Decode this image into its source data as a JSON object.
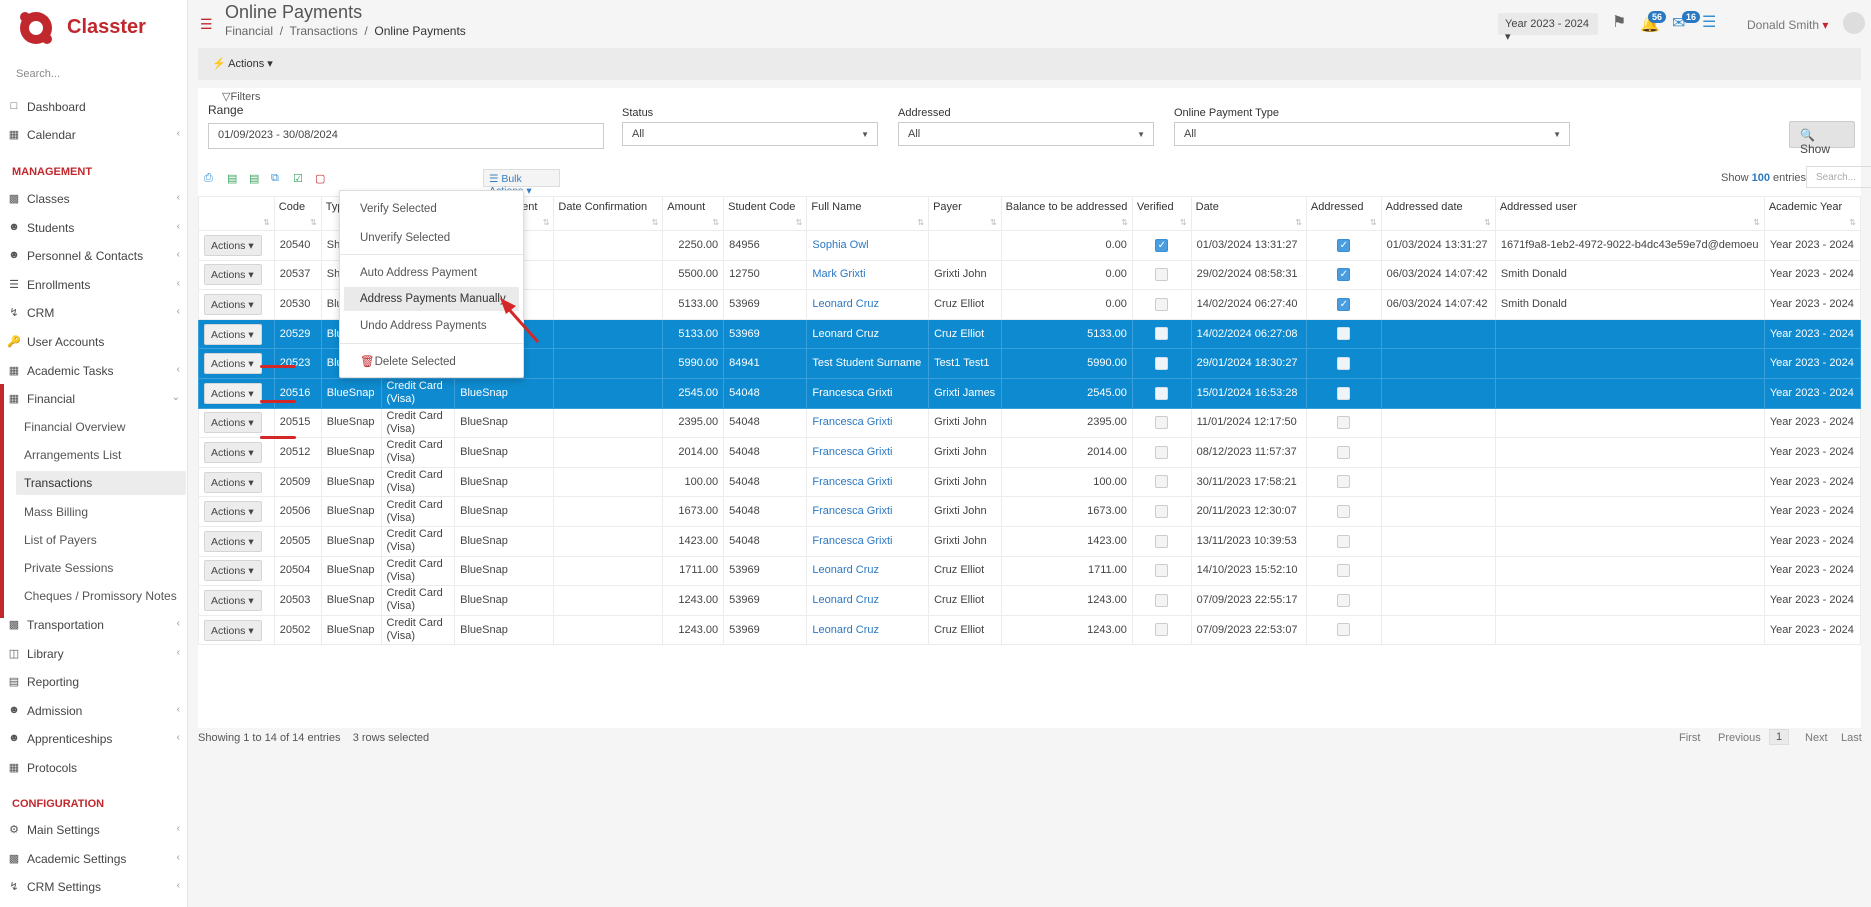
{
  "app": {
    "brand": "Classter",
    "search_placeholder": "Search..."
  },
  "sidebar": {
    "top": [
      {
        "label": "Dashboard"
      },
      {
        "label": "Calendar"
      }
    ],
    "management_header": "MANAGEMENT",
    "management": [
      {
        "label": "Classes"
      },
      {
        "label": "Students"
      },
      {
        "label": "Personnel & Contacts"
      },
      {
        "label": "Enrollments"
      },
      {
        "label": "CRM"
      },
      {
        "label": "User Accounts"
      },
      {
        "label": "Academic Tasks"
      },
      {
        "label": "Financial"
      }
    ],
    "financial_sub": [
      {
        "label": "Financial Overview"
      },
      {
        "label": "Arrangements List"
      },
      {
        "label": "Transactions"
      },
      {
        "label": "Mass Billing"
      },
      {
        "label": "List of Payers"
      },
      {
        "label": "Private Sessions"
      },
      {
        "label": "Cheques / Promissory Notes"
      }
    ],
    "more": [
      {
        "label": "Transportation"
      },
      {
        "label": "Library"
      },
      {
        "label": "Reporting"
      },
      {
        "label": "Admission"
      },
      {
        "label": "Apprenticeships"
      },
      {
        "label": "Protocols"
      }
    ],
    "config_header": "CONFIGURATION",
    "config": [
      {
        "label": "Main Settings"
      },
      {
        "label": "Academic Settings"
      },
      {
        "label": "CRM Settings"
      }
    ]
  },
  "header": {
    "title": "Online Payments",
    "breadcrumb": [
      "Financial",
      "Transactions",
      "Online Payments"
    ],
    "year": "Year 2023 - 2024",
    "notif_count": "56",
    "mail_count": "16",
    "user": "Donald Smith"
  },
  "actions_label": "Actions",
  "filters": {
    "title": "Filters",
    "range_label": "Range",
    "range_value": "01/09/2023 - 30/08/2024",
    "status_label": "Status",
    "status_value": "All",
    "addressed_label": "Addressed",
    "addressed_value": "All",
    "type_label": "Online Payment Type",
    "type_value": "All",
    "show_label": "Show"
  },
  "toolbar": {
    "bulk_label": "Bulk Actions",
    "show_prefix": "Show",
    "show_count": "100",
    "show_suffix": "entries",
    "search_placeholder": "Search..."
  },
  "bulk_menu": [
    "Verify Selected",
    "Unverify Selected",
    "Auto Address Payment",
    "Address Payments Manually",
    "Undo Address Payments",
    "Delete Selected"
  ],
  "table": {
    "columns": [
      "",
      "Code",
      "Type",
      "",
      "Online Payment Type",
      "Date Confirmation",
      "Amount",
      "Student Code",
      "Full Name",
      "Payer",
      "Balance to be addressed",
      "Verified",
      "Date",
      "Addressed",
      "Addressed date",
      "Addressed user",
      "Academic Year"
    ],
    "row_action": "Actions",
    "rows": [
      {
        "code": "20540",
        "type": "Shuttle",
        "method": "",
        "optype": "Shuttle",
        "amount": "2250.00",
        "scode": "84956",
        "name": "Sophia Owl",
        "payer": "",
        "balance": "0.00",
        "verified": true,
        "date": "01/03/2024 13:31:27",
        "addressed": true,
        "adate": "01/03/2024 13:31:27",
        "auser": "1671f9a8-1eb2-4972-9022-b4dc43e59e7d@demoeu",
        "year": "Year 2023 - 2024",
        "sel": false
      },
      {
        "code": "20537",
        "type": "Shuttle",
        "method": "",
        "optype": "Shuttle",
        "amount": "5500.00",
        "scode": "12750",
        "name": "Mark Grixti",
        "payer": "Grixti John",
        "balance": "0.00",
        "verified": false,
        "date": "29/02/2024 08:58:31",
        "addressed": true,
        "adate": "06/03/2024 14:07:42",
        "auser": "Smith Donald",
        "year": "Year 2023 - 2024",
        "sel": false
      },
      {
        "code": "20530",
        "type": "BlueSnap",
        "method": "",
        "optype": "BlueSnap",
        "amount": "5133.00",
        "scode": "53969",
        "name": "Leonard Cruz",
        "payer": "Cruz Elliot",
        "balance": "0.00",
        "verified": false,
        "date": "14/02/2024 06:27:40",
        "addressed": true,
        "adate": "06/03/2024 14:07:42",
        "auser": "Smith Donald",
        "year": "Year 2023 - 2024",
        "sel": false
      },
      {
        "code": "20529",
        "type": "BlueSnap",
        "method": "",
        "optype": "BlueSnap",
        "amount": "5133.00",
        "scode": "53969",
        "name": "Leonard Cruz",
        "payer": "Cruz Elliot",
        "balance": "5133.00",
        "verified": false,
        "date": "14/02/2024 06:27:08",
        "addressed": false,
        "adate": "",
        "auser": "",
        "year": "Year 2023 - 2024",
        "sel": true
      },
      {
        "code": "20523",
        "type": "BlueSnap",
        "method": "",
        "optype": "BlueSnap",
        "amount": "5990.00",
        "scode": "84941",
        "name": "Test Student Surname",
        "payer": "Test1 Test1",
        "balance": "5990.00",
        "verified": false,
        "date": "29/01/2024 18:30:27",
        "addressed": false,
        "adate": "",
        "auser": "",
        "year": "Year 2023 - 2024",
        "sel": true
      },
      {
        "code": "20516",
        "type": "BlueSnap",
        "method": "Credit Card (Visa)",
        "optype": "BlueSnap",
        "amount": "2545.00",
        "scode": "54048",
        "name": "Francesca Grixti",
        "payer": "Grixti James",
        "balance": "2545.00",
        "verified": false,
        "date": "15/01/2024 16:53:28",
        "addressed": false,
        "adate": "",
        "auser": "",
        "year": "Year 2023 - 2024",
        "sel": true
      },
      {
        "code": "20515",
        "type": "BlueSnap",
        "method": "Credit Card (Visa)",
        "optype": "BlueSnap",
        "amount": "2395.00",
        "scode": "54048",
        "name": "Francesca Grixti",
        "payer": "Grixti John",
        "balance": "2395.00",
        "verified": false,
        "date": "11/01/2024 12:17:50",
        "addressed": false,
        "adate": "",
        "auser": "",
        "year": "Year 2023 - 2024",
        "sel": false
      },
      {
        "code": "20512",
        "type": "BlueSnap",
        "method": "Credit Card (Visa)",
        "optype": "BlueSnap",
        "amount": "2014.00",
        "scode": "54048",
        "name": "Francesca Grixti",
        "payer": "Grixti John",
        "balance": "2014.00",
        "verified": false,
        "date": "08/12/2023 11:57:37",
        "addressed": false,
        "adate": "",
        "auser": "",
        "year": "Year 2023 - 2024",
        "sel": false
      },
      {
        "code": "20509",
        "type": "BlueSnap",
        "method": "Credit Card (Visa)",
        "optype": "BlueSnap",
        "amount": "100.00",
        "scode": "54048",
        "name": "Francesca Grixti",
        "payer": "Grixti John",
        "balance": "100.00",
        "verified": false,
        "date": "30/11/2023 17:58:21",
        "addressed": false,
        "adate": "",
        "auser": "",
        "year": "Year 2023 - 2024",
        "sel": false
      },
      {
        "code": "20506",
        "type": "BlueSnap",
        "method": "Credit Card (Visa)",
        "optype": "BlueSnap",
        "amount": "1673.00",
        "scode": "54048",
        "name": "Francesca Grixti",
        "payer": "Grixti John",
        "balance": "1673.00",
        "verified": false,
        "date": "20/11/2023 12:30:07",
        "addressed": false,
        "adate": "",
        "auser": "",
        "year": "Year 2023 - 2024",
        "sel": false
      },
      {
        "code": "20505",
        "type": "BlueSnap",
        "method": "Credit Card (Visa)",
        "optype": "BlueSnap",
        "amount": "1423.00",
        "scode": "54048",
        "name": "Francesca Grixti",
        "payer": "Grixti John",
        "balance": "1423.00",
        "verified": false,
        "date": "13/11/2023 10:39:53",
        "addressed": false,
        "adate": "",
        "auser": "",
        "year": "Year 2023 - 2024",
        "sel": false
      },
      {
        "code": "20504",
        "type": "BlueSnap",
        "method": "Credit Card (Visa)",
        "optype": "BlueSnap",
        "amount": "1711.00",
        "scode": "53969",
        "name": "Leonard Cruz",
        "payer": "Cruz Elliot",
        "balance": "1711.00",
        "verified": false,
        "date": "14/10/2023 15:52:10",
        "addressed": false,
        "adate": "",
        "auser": "",
        "year": "Year 2023 - 2024",
        "sel": false
      },
      {
        "code": "20503",
        "type": "BlueSnap",
        "method": "Credit Card (Visa)",
        "optype": "BlueSnap",
        "amount": "1243.00",
        "scode": "53969",
        "name": "Leonard Cruz",
        "payer": "Cruz Elliot",
        "balance": "1243.00",
        "verified": false,
        "date": "07/09/2023 22:55:17",
        "addressed": false,
        "adate": "",
        "auser": "",
        "year": "Year 2023 - 2024",
        "sel": false
      },
      {
        "code": "20502",
        "type": "BlueSnap",
        "method": "Credit Card (Visa)",
        "optype": "BlueSnap",
        "amount": "1243.00",
        "scode": "53969",
        "name": "Leonard Cruz",
        "payer": "Cruz Elliot",
        "balance": "1243.00",
        "verified": false,
        "date": "07/09/2023 22:53:07",
        "addressed": false,
        "adate": "",
        "auser": "",
        "year": "Year 2023 - 2024",
        "sel": false
      }
    ]
  },
  "footer": {
    "info": "Showing 1 to 14 of 14 entries",
    "selected": "3 rows selected",
    "pager": [
      "First",
      "Previous",
      "1",
      "Next",
      "Last"
    ]
  },
  "colors": {
    "brand": "#c0282d",
    "selected_row": "#0e8bd0",
    "link": "#2b78c2"
  }
}
